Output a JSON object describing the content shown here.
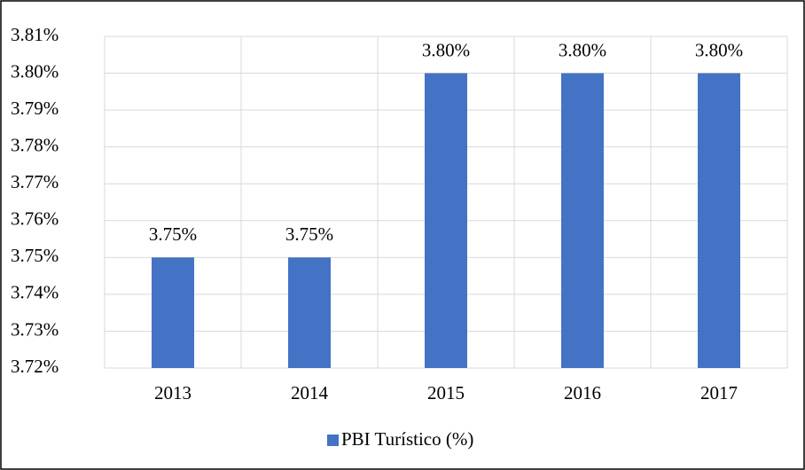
{
  "chart_data": {
    "type": "bar",
    "categories": [
      "2013",
      "2014",
      "2015",
      "2016",
      "2017"
    ],
    "series": [
      {
        "name": "PBI Turístico (%)",
        "color": "#4472c4",
        "values": [
          3.75,
          3.75,
          3.8,
          3.8,
          3.8
        ],
        "value_labels": [
          "3.75%",
          "3.75%",
          "3.80%",
          "3.80%",
          "3.80%"
        ]
      }
    ],
    "ylim": [
      3.72,
      3.81
    ],
    "yticks": [
      {
        "value": 3.72,
        "label": "3.72%"
      },
      {
        "value": 3.73,
        "label": "3.73%"
      },
      {
        "value": 3.74,
        "label": "3.74%"
      },
      {
        "value": 3.75,
        "label": "3.75%"
      },
      {
        "value": 3.76,
        "label": "3.76%"
      },
      {
        "value": 3.77,
        "label": "3.77%"
      },
      {
        "value": 3.78,
        "label": "3.78%"
      },
      {
        "value": 3.79,
        "label": "3.79%"
      },
      {
        "value": 3.8,
        "label": "3.80%"
      },
      {
        "value": 3.81,
        "label": "3.81%"
      }
    ],
    "grid": true,
    "legend": "bottom"
  }
}
